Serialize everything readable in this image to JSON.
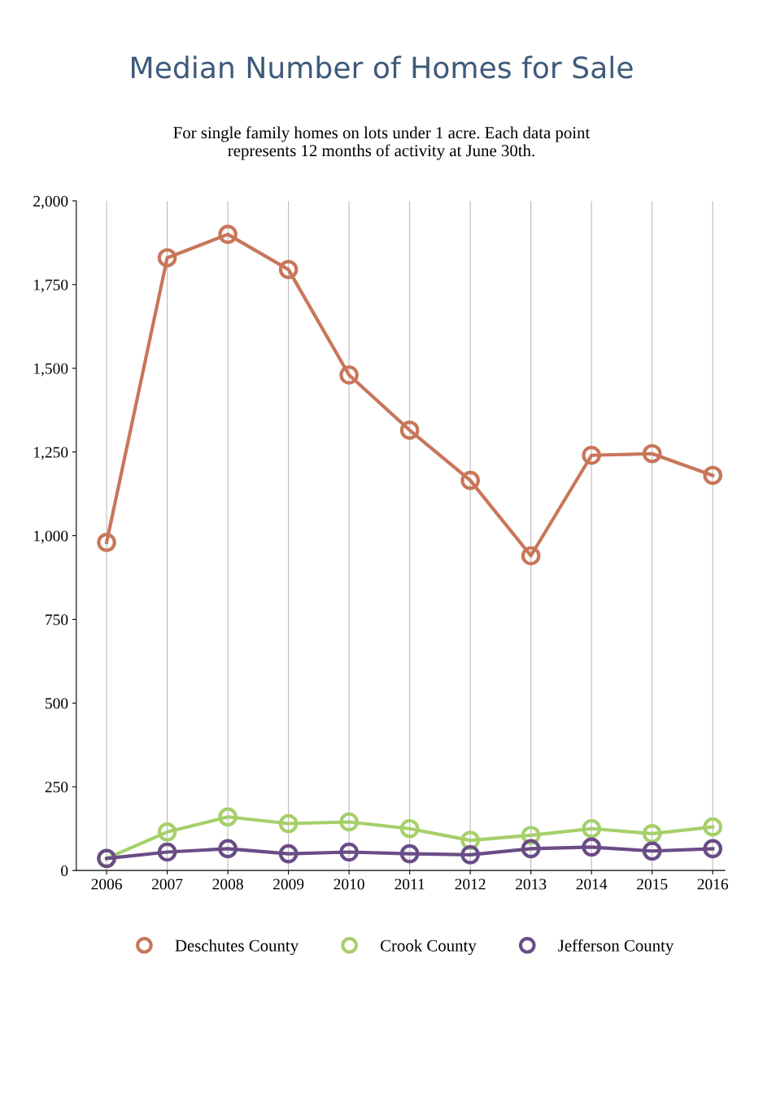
{
  "chart_data": {
    "type": "line",
    "title": "Median Number of Homes for Sale",
    "subtitle": "For single family homes on lots under 1 acre. Each data point\nrepresents 12 months of activity at June 30th.",
    "x": [
      2006,
      2007,
      2008,
      2009,
      2010,
      2011,
      2012,
      2013,
      2014,
      2015,
      2016
    ],
    "xlim": [
      2005.5,
      2016.2
    ],
    "xticks": [
      2006,
      2007,
      2008,
      2009,
      2010,
      2011,
      2012,
      2013,
      2014,
      2015,
      2016
    ],
    "ylim": [
      0,
      2000
    ],
    "yticks": [
      0,
      250,
      500,
      750,
      {
        "value": 1000,
        "label": "1,000"
      },
      {
        "value": 1250,
        "label": "1,250"
      },
      {
        "value": 1500,
        "label": "1,500"
      },
      {
        "value": 1750,
        "label": "1,750"
      },
      {
        "value": 2000,
        "label": "2,000"
      }
    ],
    "grid": "x",
    "legend": "bottom",
    "marker": "circle",
    "line_style": "solid",
    "series": [
      {
        "name": "Deschutes County",
        "color": "#c8765a",
        "values": [
          980,
          1830,
          1900,
          1795,
          1480,
          1315,
          1165,
          940,
          1240,
          1245,
          1180
        ]
      },
      {
        "name": "Crook County",
        "color": "#a6cf6a",
        "values": [
          36,
          115,
          160,
          140,
          145,
          125,
          90,
          105,
          125,
          110,
          130
        ]
      },
      {
        "name": "Jefferson County",
        "color": "#6a4c86",
        "values": [
          36,
          55,
          65,
          50,
          55,
          50,
          47,
          65,
          70,
          58,
          65
        ]
      }
    ]
  }
}
